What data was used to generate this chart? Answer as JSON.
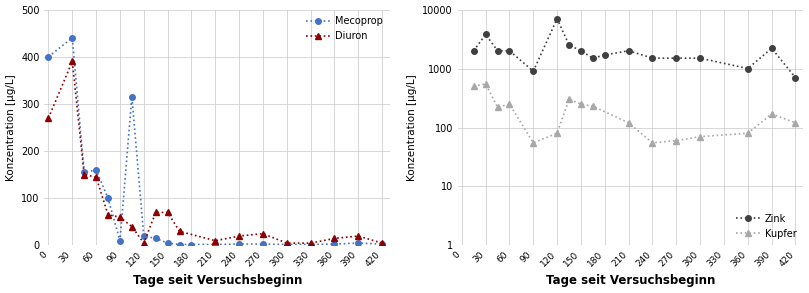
{
  "mecoprop_x": [
    0,
    30,
    45,
    60,
    75,
    90,
    105,
    120,
    135,
    150,
    165,
    180,
    210,
    240,
    270,
    300,
    330,
    360,
    390,
    420
  ],
  "mecoprop_y": [
    400,
    440,
    155,
    160,
    100,
    10,
    315,
    20,
    15,
    5,
    2,
    2,
    2,
    3,
    3,
    2,
    2,
    3,
    5,
    3
  ],
  "diuron_x": [
    0,
    30,
    45,
    60,
    75,
    90,
    105,
    120,
    135,
    150,
    165,
    210,
    240,
    270,
    300,
    330,
    360,
    390,
    420
  ],
  "diuron_y": [
    270,
    390,
    150,
    145,
    65,
    60,
    40,
    5,
    70,
    70,
    30,
    10,
    20,
    25,
    5,
    5,
    15,
    20,
    5
  ],
  "zink_x": [
    15,
    30,
    45,
    60,
    90,
    120,
    135,
    150,
    165,
    180,
    210,
    240,
    270,
    300,
    360,
    390,
    420
  ],
  "zink_y": [
    2000,
    3800,
    2000,
    2000,
    900,
    7000,
    2500,
    2000,
    1500,
    1700,
    2000,
    1500,
    1500,
    1500,
    1000,
    2200,
    700
  ],
  "kupfer_x": [
    15,
    30,
    45,
    60,
    90,
    120,
    135,
    150,
    165,
    210,
    240,
    270,
    300,
    360,
    390,
    420
  ],
  "kupfer_y": [
    500,
    550,
    220,
    250,
    55,
    80,
    300,
    250,
    230,
    120,
    55,
    60,
    70,
    80,
    170,
    120
  ],
  "left_ylim": [
    0,
    500
  ],
  "left_yticks": [
    0,
    100,
    200,
    300,
    400,
    500
  ],
  "right_ylim": [
    1,
    10000
  ],
  "right_yticks": [
    1,
    10,
    100,
    1000,
    10000
  ],
  "xticks": [
    0,
    30,
    60,
    90,
    120,
    150,
    180,
    210,
    240,
    270,
    300,
    330,
    360,
    390,
    420
  ],
  "xlabel": "Tage seit Versuchsbeginn",
  "ylabel_left": "Konzentration [µg/L]",
  "ylabel_right": "Konzentration [µg/L]",
  "legend_left": [
    "Mecoprop",
    "Diuron"
  ],
  "legend_right": [
    "Zink",
    "Kupfer"
  ],
  "mecoprop_color": "#4472C4",
  "diuron_color": "#8B0000",
  "zink_color": "#404040",
  "kupfer_color": "#A8A8A8",
  "bg_color": "#FFFFFF",
  "grid_color": "#C8C8C8"
}
